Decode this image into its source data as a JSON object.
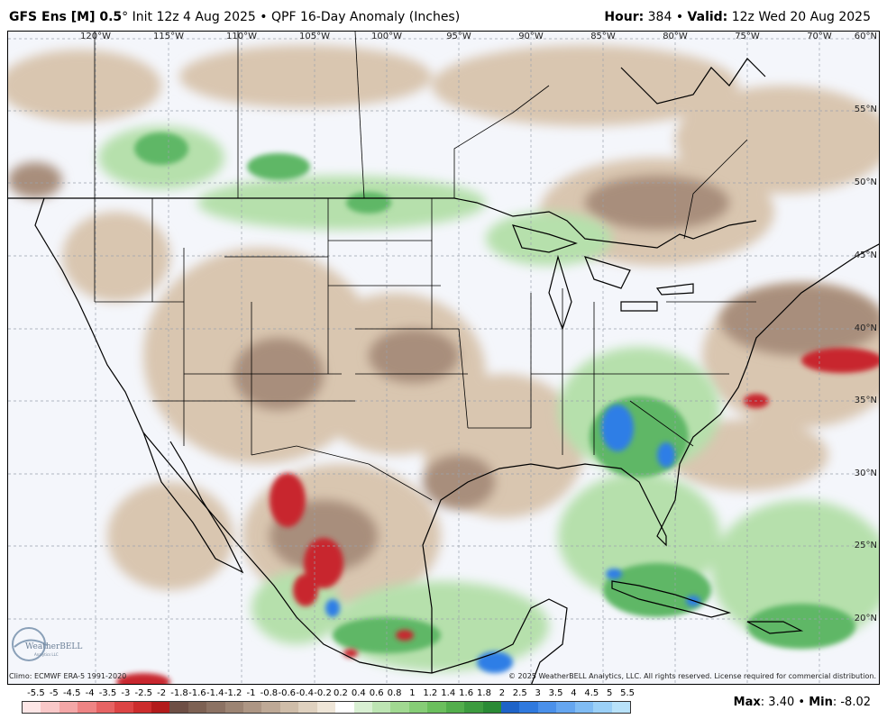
{
  "header": {
    "model": "GFS Ens [M] 0.5",
    "degree": "°",
    "init": " Init 12z 4 Aug 2025",
    "sep": " • ",
    "product": "QPF 16-Day Anomaly (Inches)",
    "hour_label": "Hour:",
    "hour_value": " 384",
    "valid_label": "Valid:",
    "valid_value": " 12z Wed 20 Aug 2025"
  },
  "longitudes": [
    "120°W",
    "115°W",
    "110°W",
    "105°W",
    "100°W",
    "95°W",
    "90°W",
    "85°W",
    "80°W",
    "75°W",
    "70°W"
  ],
  "latitudes": [
    "60°N",
    "55°N",
    "50°N",
    "45°N",
    "40°N",
    "35°N",
    "30°N",
    "25°N",
    "20°N"
  ],
  "footer": {
    "climo": "Climo: ECMWF ERA-5 1991-2020",
    "copyright": "© 2025 WeatherBELL Analytics, LLC. All rights reserved. License required for commercial distribution.",
    "logo_text": "WeatherBELL",
    "logo_sub": "Analytics LLC"
  },
  "colorbar": {
    "ticks": [
      "-5.5",
      "-5",
      "-4.5",
      "-4",
      "-3.5",
      "-3",
      "-2.5",
      "-2",
      "-1.8",
      "-1.6",
      "-1.4",
      "-1.2",
      "-1",
      "-0.8",
      "-0.6",
      "-0.4",
      "-0.2",
      "0.2",
      "0.4",
      "0.6",
      "0.8",
      "1",
      "1.2",
      "1.4",
      "1.6",
      "1.8",
      "2",
      "2.5",
      "3",
      "3.5",
      "4",
      "4.5",
      "5",
      "5.5"
    ],
    "colors": [
      "#fde6e6",
      "#f9c8c8",
      "#f4a7a7",
      "#ee8484",
      "#e66363",
      "#dc4444",
      "#cc2c2c",
      "#b31b1b",
      "#6e4f45",
      "#7d6153",
      "#8c7263",
      "#9c8473",
      "#ad9684",
      "#bea996",
      "#cfbda9",
      "#dfd1bf",
      "#efe6d8",
      "#ffffff",
      "#d9f0d3",
      "#bde5b3",
      "#a1d991",
      "#86cd76",
      "#6bbf5d",
      "#53ae4c",
      "#3d9b3f",
      "#2a8a35",
      "#1e63c8",
      "#2f79de",
      "#4a90ea",
      "#65a6f0",
      "#80bcf4",
      "#9bd0f7",
      "#b8e2fa"
    ]
  },
  "stats": {
    "max_label": "Max",
    "max_value": ": 3.40",
    "sep": " • ",
    "min_label": "Min",
    "min_value": ": -8.02"
  },
  "legend_colors": {
    "dry_strong": "#c8272f",
    "dry_mod": "#8c7263",
    "dry_light": "#dcc9b4",
    "wet_light": "#b9e2af",
    "wet_mod": "#5fb766",
    "wet_strong": "#2f7ee6",
    "background": "#f4f6fb"
  }
}
